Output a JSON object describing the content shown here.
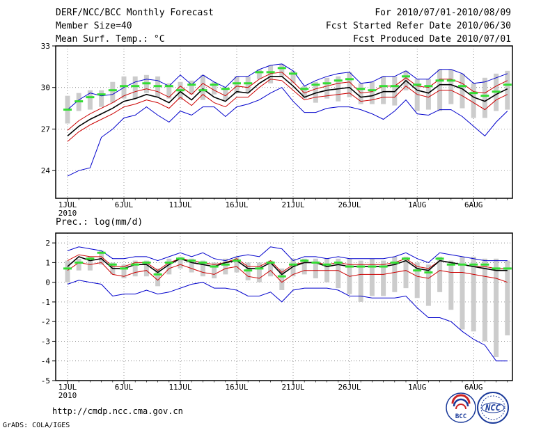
{
  "header": {
    "title": "DERF/NCC/BCC Monthly Forecast",
    "member": "Member Size=40",
    "variable": "Mean Surf. Temp.: °C",
    "period": "For 2010/07/01-2010/08/09",
    "started": "Fcst Started Refer Date 2010/06/30",
    "produced": "Fcst Produced Date 2010/07/01"
  },
  "footer": {
    "url": "http://cmdp.ncc.cma.gov.cn",
    "credit": "GrADS: COLA/IGES",
    "logo1": "BCC",
    "logo2": "NCC"
  },
  "colors": {
    "box": "#cccccc",
    "median": "#33dd33",
    "mean": "#000000",
    "bound": "#cc0000",
    "extreme": "#0000cc",
    "grid": "#666666"
  },
  "chart_data": [
    {
      "type": "line",
      "title": "Mean Surf. Temp.: °C",
      "xlabel": "2010",
      "ylabel": "°C",
      "ylim": [
        22,
        33
      ],
      "y_ticks": [
        "24",
        "27",
        "30",
        "33"
      ],
      "x_ticks": [
        "1JUL",
        "6JUL",
        "11JUL",
        "16JUL",
        "21JUL",
        "26JUL",
        "1AUG",
        "6AUG"
      ],
      "x": [
        1,
        2,
        3,
        4,
        5,
        6,
        7,
        8,
        9,
        10,
        11,
        12,
        13,
        14,
        15,
        16,
        17,
        18,
        19,
        20,
        21,
        22,
        23,
        24,
        25,
        26,
        27,
        28,
        29,
        30,
        31,
        32,
        33,
        34,
        35,
        36,
        37,
        38,
        39,
        40
      ],
      "series": [
        {
          "name": "max",
          "values": [
            28.4,
            29.1,
            29.6,
            29.4,
            29.5,
            30.0,
            30.4,
            30.6,
            30.5,
            30.1,
            30.9,
            30.2,
            30.9,
            30.4,
            30.0,
            30.8,
            30.8,
            31.3,
            31.6,
            31.7,
            31.2,
            30.1,
            30.5,
            30.8,
            31.0,
            31.1,
            30.3,
            30.4,
            30.8,
            30.8,
            31.2,
            30.6,
            30.6,
            31.3,
            31.3,
            31.0,
            30.3,
            30.4,
            30.7,
            31.0
          ]
        },
        {
          "name": "upper",
          "values": [
            26.9,
            27.6,
            28.1,
            28.5,
            28.9,
            29.4,
            29.7,
            29.9,
            29.7,
            29.3,
            30.1,
            29.5,
            30.3,
            29.8,
            29.4,
            30.1,
            30.0,
            30.6,
            31.0,
            31.1,
            30.4,
            29.6,
            29.9,
            30.1,
            30.3,
            30.4,
            29.6,
            29.7,
            30.1,
            30.1,
            30.7,
            30.1,
            30.0,
            30.6,
            30.6,
            30.3,
            29.7,
            29.6,
            30.1,
            30.5
          ]
        },
        {
          "name": "mean",
          "values": [
            26.5,
            27.2,
            27.7,
            28.1,
            28.5,
            29.0,
            29.2,
            29.5,
            29.3,
            28.9,
            29.7,
            29.1,
            29.9,
            29.3,
            29.0,
            29.7,
            29.6,
            30.3,
            30.8,
            30.8,
            30.1,
            29.3,
            29.6,
            29.8,
            29.9,
            30.0,
            29.3,
            29.4,
            29.7,
            29.7,
            30.5,
            29.8,
            29.6,
            30.2,
            30.2,
            29.9,
            29.3,
            29.0,
            29.5,
            29.9
          ]
        },
        {
          "name": "lower",
          "values": [
            26.1,
            26.8,
            27.3,
            27.7,
            28.1,
            28.6,
            28.8,
            29.1,
            28.9,
            28.5,
            29.3,
            28.7,
            29.5,
            28.9,
            28.6,
            29.3,
            29.3,
            30.0,
            30.6,
            30.5,
            29.8,
            29.1,
            29.3,
            29.4,
            29.5,
            29.6,
            29.0,
            29.1,
            29.3,
            29.3,
            30.1,
            29.5,
            29.3,
            29.8,
            29.8,
            29.4,
            28.9,
            28.4,
            29.1,
            29.5
          ]
        },
        {
          "name": "min",
          "values": [
            23.6,
            24.0,
            24.2,
            26.4,
            27.0,
            27.8,
            28.0,
            28.6,
            28.0,
            27.5,
            28.3,
            28.0,
            28.6,
            28.6,
            27.9,
            28.6,
            28.8,
            29.1,
            29.6,
            30.0,
            29.0,
            28.2,
            28.2,
            28.5,
            28.6,
            28.6,
            28.4,
            28.1,
            27.7,
            28.3,
            29.1,
            28.1,
            28.0,
            28.4,
            28.4,
            27.9,
            27.2,
            26.5,
            27.5,
            28.3
          ]
        },
        {
          "name": "median",
          "values": [
            28.4,
            29.0,
            29.3,
            29.5,
            29.8,
            30.1,
            30.1,
            30.3,
            30.1,
            30.1,
            29.8,
            30.2,
            29.8,
            30.2,
            29.9,
            30.3,
            30.3,
            31.1,
            31.1,
            31.4,
            31.0,
            29.9,
            30.2,
            30.3,
            30.5,
            30.6,
            29.9,
            29.8,
            30.1,
            30.1,
            30.8,
            30.2,
            30.1,
            30.5,
            30.5,
            30.1,
            29.6,
            29.4,
            29.7,
            30.2
          ]
        },
        {
          "name": "box_top",
          "values": [
            29.4,
            29.6,
            29.8,
            29.8,
            30.4,
            30.8,
            30.8,
            30.9,
            30.8,
            30.3,
            30.4,
            30.5,
            30.9,
            30.4,
            30.0,
            30.8,
            30.8,
            31.3,
            31.6,
            31.7,
            31.2,
            30.1,
            30.4,
            30.7,
            30.8,
            31.1,
            30.3,
            30.4,
            30.8,
            30.8,
            31.2,
            30.6,
            30.6,
            31.3,
            31.3,
            31.0,
            30.3,
            30.7,
            31.0,
            31.2
          ]
        },
        {
          "name": "box_bottom",
          "values": [
            27.4,
            28.3,
            28.4,
            28.6,
            28.9,
            29.2,
            29.2,
            29.6,
            29.3,
            29.2,
            29.1,
            29.5,
            29.1,
            29.5,
            29.1,
            29.6,
            29.6,
            30.6,
            30.3,
            30.8,
            30.3,
            29.2,
            28.9,
            29.2,
            29.0,
            29.3,
            28.8,
            28.8,
            28.8,
            28.7,
            29.8,
            28.3,
            28.4,
            28.3,
            28.8,
            28.5,
            27.8,
            27.8,
            28.3,
            28.4
          ]
        }
      ]
    },
    {
      "type": "line",
      "title": "Prec.: log(mm/d)",
      "xlabel": "2010",
      "ylabel": "log(mm/d)",
      "ylim": [
        -5,
        2.5
      ],
      "y_ticks": [
        "2",
        "1",
        "0",
        "-1",
        "-2",
        "-3",
        "-4",
        "-5"
      ],
      "x_ticks": [
        "1JUL",
        "6JUL",
        "11JUL",
        "16JUL",
        "21JUL",
        "26JUL",
        "1AUG",
        "6AUG"
      ],
      "x": [
        1,
        2,
        3,
        4,
        5,
        6,
        7,
        8,
        9,
        10,
        11,
        12,
        13,
        14,
        15,
        16,
        17,
        18,
        19,
        20,
        21,
        22,
        23,
        24,
        25,
        26,
        27,
        28,
        29,
        30,
        31,
        32,
        33,
        34,
        35,
        36,
        37,
        38,
        39,
        40
      ],
      "series": [
        {
          "name": "max",
          "values": [
            1.6,
            1.8,
            1.7,
            1.6,
            1.2,
            1.2,
            1.3,
            1.3,
            1.1,
            1.3,
            1.5,
            1.3,
            1.5,
            1.2,
            1.1,
            1.3,
            1.4,
            1.3,
            1.8,
            1.7,
            1.1,
            1.3,
            1.3,
            1.2,
            1.3,
            1.2,
            1.2,
            1.2,
            1.2,
            1.3,
            1.5,
            1.2,
            1.0,
            1.5,
            1.4,
            1.3,
            1.2,
            1.1,
            1.1,
            1.1
          ]
        },
        {
          "name": "upper",
          "values": [
            1.1,
            1.4,
            1.3,
            1.3,
            0.8,
            0.8,
            1.0,
            1.0,
            0.6,
            1.0,
            1.2,
            1.1,
            1.0,
            0.9,
            1.0,
            1.2,
            0.8,
            0.8,
            1.1,
            0.5,
            0.9,
            1.0,
            1.0,
            0.9,
            1.0,
            0.9,
            0.9,
            0.9,
            0.9,
            1.0,
            1.2,
            0.8,
            0.7,
            1.1,
            1.0,
            0.9,
            0.8,
            0.8,
            0.7,
            0.7
          ]
        },
        {
          "name": "mean",
          "values": [
            0.8,
            1.3,
            1.1,
            1.2,
            0.7,
            0.7,
            0.9,
            0.9,
            0.5,
            0.9,
            1.2,
            1.0,
            0.9,
            0.8,
            1.0,
            1.1,
            0.7,
            0.7,
            1.0,
            0.4,
            0.8,
            1.0,
            1.0,
            0.8,
            0.9,
            0.8,
            0.8,
            0.8,
            0.8,
            0.9,
            1.1,
            0.7,
            0.6,
            1.1,
            1.0,
            0.9,
            0.8,
            0.7,
            0.6,
            0.6
          ]
        },
        {
          "name": "lower",
          "values": [
            0.6,
            1.0,
            0.9,
            1.0,
            0.4,
            0.3,
            0.5,
            0.6,
            0.1,
            0.7,
            0.9,
            0.7,
            0.5,
            0.4,
            0.7,
            0.8,
            0.3,
            0.2,
            0.6,
            0.0,
            0.4,
            0.6,
            0.6,
            0.6,
            0.6,
            0.3,
            0.4,
            0.4,
            0.4,
            0.5,
            0.6,
            0.3,
            0.2,
            0.6,
            0.5,
            0.5,
            0.4,
            0.3,
            0.2,
            0.0
          ]
        },
        {
          "name": "min",
          "values": [
            -0.1,
            0.1,
            0.0,
            -0.1,
            -0.7,
            -0.6,
            -0.6,
            -0.4,
            -0.6,
            -0.5,
            -0.3,
            -0.1,
            0.0,
            -0.3,
            -0.3,
            -0.4,
            -0.7,
            -0.7,
            -0.5,
            -1.0,
            -0.4,
            -0.3,
            -0.3,
            -0.3,
            -0.4,
            -0.7,
            -0.7,
            -0.8,
            -0.8,
            -0.8,
            -0.7,
            -1.3,
            -1.8,
            -1.8,
            -2.0,
            -2.5,
            -2.9,
            -3.2,
            -4.0,
            -4.0
          ]
        },
        {
          "name": "median",
          "values": [
            0.7,
            1.0,
            1.2,
            1.5,
            0.9,
            0.7,
            0.9,
            1.0,
            0.4,
            1.0,
            1.2,
            1.1,
            1.0,
            0.8,
            0.9,
            1.1,
            0.6,
            0.7,
            1.0,
            0.3,
            0.9,
            1.1,
            1.0,
            0.9,
            1.0,
            0.8,
            0.8,
            0.8,
            0.8,
            1.0,
            1.2,
            0.6,
            0.5,
            1.2,
            0.9,
            0.9,
            0.9,
            0.9,
            0.7,
            0.7
          ]
        },
        {
          "name": "box_top",
          "values": [
            1.1,
            1.2,
            1.3,
            1.6,
            1.0,
            0.9,
            1.1,
            1.1,
            0.7,
            1.2,
            1.3,
            1.2,
            1.1,
            1.0,
            1.2,
            1.3,
            1.0,
            1.0,
            1.1,
            0.7,
            1.2,
            1.2,
            1.2,
            1.2,
            1.2,
            1.2,
            1.1,
            1.2,
            1.1,
            1.3,
            1.3,
            1.0,
            0.9,
            1.3,
            1.1,
            1.3,
            1.3,
            1.2,
            1.2,
            1.1
          ]
        },
        {
          "name": "box_bottom",
          "values": [
            0.0,
            0.6,
            0.6,
            0.9,
            0.4,
            0.2,
            0.3,
            0.3,
            -0.2,
            0.4,
            0.7,
            0.5,
            0.3,
            0.2,
            0.4,
            0.5,
            0.1,
            0.0,
            0.3,
            -0.4,
            0.3,
            0.4,
            0.2,
            0.0,
            -0.3,
            -0.6,
            -1.0,
            -0.7,
            -0.7,
            -0.5,
            -0.3,
            -0.8,
            -1.2,
            -0.5,
            -1.4,
            -2.4,
            -2.5,
            -3.0,
            -3.8,
            -2.7
          ]
        }
      ]
    }
  ]
}
